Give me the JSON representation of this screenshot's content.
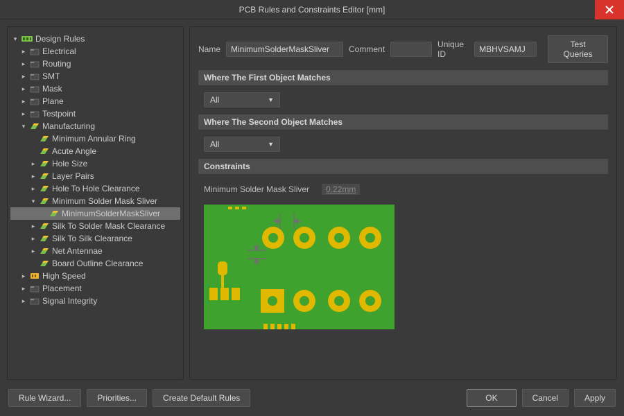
{
  "window": {
    "title": "PCB Rules and Constraints Editor [mm]"
  },
  "tree": {
    "root": "Design Rules",
    "categories": [
      {
        "label": "Electrical",
        "expanded": false
      },
      {
        "label": "Routing",
        "expanded": false
      },
      {
        "label": "SMT",
        "expanded": false
      },
      {
        "label": "Mask",
        "expanded": false
      },
      {
        "label": "Plane",
        "expanded": false
      },
      {
        "label": "Testpoint",
        "expanded": false
      },
      {
        "label": "Manufacturing",
        "expanded": true,
        "children": [
          {
            "label": "Minimum Annular Ring",
            "leaf": true
          },
          {
            "label": "Acute Angle",
            "leaf": true
          },
          {
            "label": "Hole Size"
          },
          {
            "label": "Layer Pairs"
          },
          {
            "label": "Hole To Hole Clearance"
          },
          {
            "label": "Minimum Solder Mask Sliver",
            "expanded": true,
            "children": [
              {
                "label": "MinimumSolderMaskSliver",
                "selected": true
              }
            ]
          },
          {
            "label": "Silk To Solder Mask Clearance"
          },
          {
            "label": "Silk To Silk Clearance"
          },
          {
            "label": "Net Antennae"
          },
          {
            "label": "Board Outline Clearance",
            "leaf": true
          }
        ]
      },
      {
        "label": "High Speed",
        "expanded": false
      },
      {
        "label": "Placement",
        "expanded": false
      },
      {
        "label": "Signal Integrity",
        "expanded": false
      }
    ]
  },
  "form": {
    "name_label": "Name",
    "name_value": "MinimumSolderMaskSliver",
    "comment_label": "Comment",
    "comment_value": "",
    "uniqueid_label": "Unique ID",
    "uniqueid_value": "MBHVSAMJ",
    "test_queries": "Test Queries",
    "section_first": "Where The First Object Matches",
    "first_value": "All",
    "section_second": "Where The Second Object Matches",
    "second_value": "All",
    "section_constraints": "Constraints",
    "constraint_label": "Minimum Solder Mask Sliver",
    "constraint_value": "0.22mm"
  },
  "footer": {
    "rule_wizard": "Rule Wizard...",
    "priorities": "Priorities...",
    "create_default": "Create Default Rules",
    "ok": "OK",
    "cancel": "Cancel",
    "apply": "Apply"
  },
  "colors": {
    "pcb_board": "#3fa12e",
    "pcb_copper": "#e0b800",
    "pcb_dim": "#707070",
    "accent_red": "#d9342b"
  },
  "icons": {
    "category_color": "#6aa0d8",
    "rule_color_a": "#7cc04a",
    "rule_color_b": "#f0c030",
    "root_color": "#7cc04a",
    "special_color": "#f0b030"
  }
}
